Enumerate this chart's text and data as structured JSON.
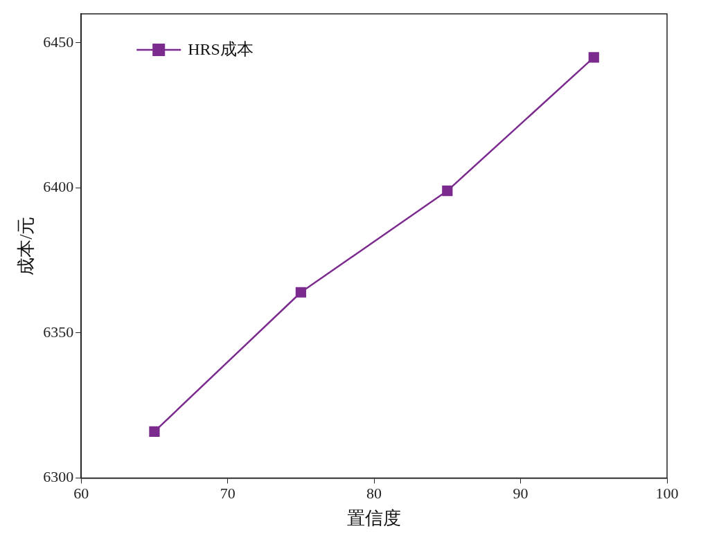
{
  "chart_data": {
    "type": "line",
    "xlabel": "置信度",
    "ylabel": "成本/元",
    "x": [
      65,
      75,
      85,
      95
    ],
    "series": [
      {
        "name": "HRS成本",
        "color": "#7b2a8e",
        "values": [
          6316,
          6364,
          6399,
          6445
        ]
      }
    ],
    "xlim": [
      60,
      100
    ],
    "xticks": [
      60,
      70,
      80,
      90,
      100
    ],
    "ylim": [
      6300,
      6460
    ],
    "yticks": [
      6300,
      6350,
      6400,
      6450
    ],
    "grid": false,
    "legend": "top left",
    "marker": "square",
    "line_style": "solid"
  }
}
